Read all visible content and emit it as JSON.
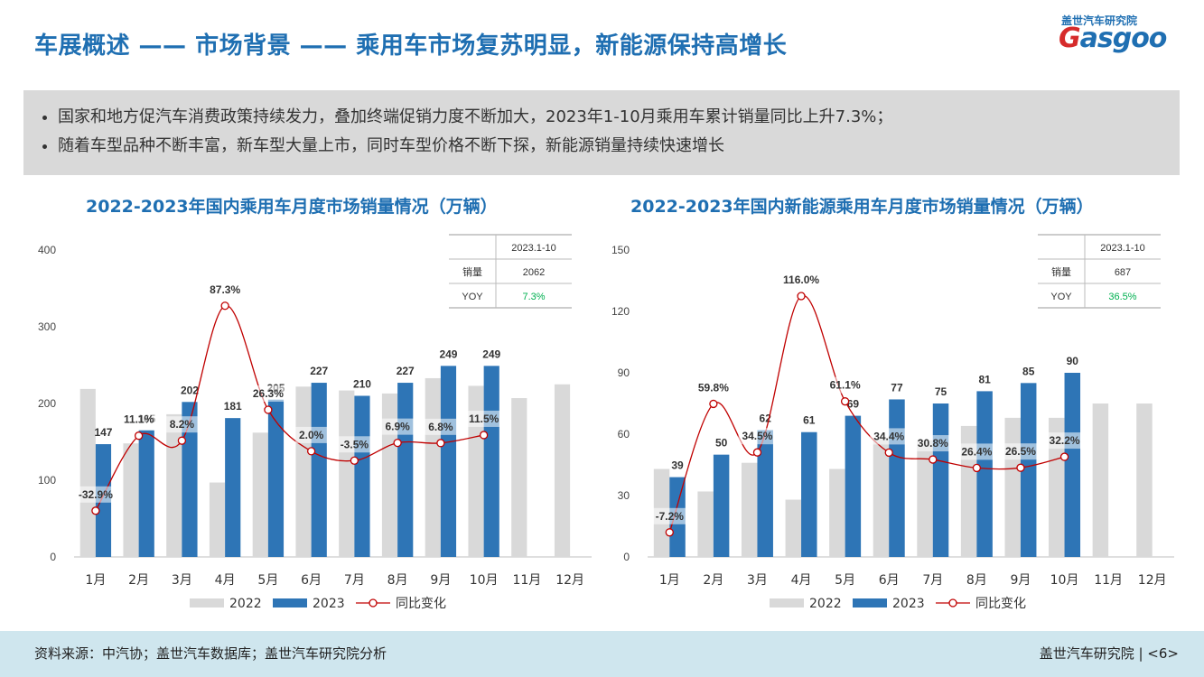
{
  "header": {
    "title": "车展概述 —— 市场背景 —— 乘用车市场复苏明显，新能源保持高增长",
    "logo_cn": "盖世汽车研究院",
    "logo_en_g": "G",
    "logo_en_rest": "asgoo"
  },
  "bullets": [
    "国家和地方促汽车消费政策持续发力，叠加终端促销力度不断加大，2023年1-10月乘用车累计销量同比上升7.3%；",
    "随着车型品种不断丰富，新车型大量上市，同时车型价格不断下探，新能源销量持续快速增长"
  ],
  "colors": {
    "s2022": "#d9d9d9",
    "s2023": "#2e75b6",
    "yoy": "#c00000",
    "accent": "#1f6fb2",
    "green": "#00b050"
  },
  "chart_data": [
    {
      "type": "bar",
      "title": "2022-2023年国内乘用车月度市场销量情况（万辆）",
      "categories": [
        "1月",
        "2月",
        "3月",
        "4月",
        "5月",
        "6月",
        "7月",
        "8月",
        "9月",
        "10月",
        "11月",
        "12月"
      ],
      "ylim": [
        0,
        400
      ],
      "yticks": [
        "0",
        "100",
        "200",
        "300",
        "400"
      ],
      "y2lim": [
        -60,
        120
      ],
      "series": [
        {
          "name": "2022",
          "values": [
            219,
            148,
            186,
            97,
            162,
            222,
            217,
            213,
            233,
            223,
            207,
            225
          ]
        },
        {
          "name": "2023",
          "values": [
            147,
            165,
            202,
            181,
            205,
            227,
            210,
            227,
            249,
            249,
            null,
            null
          ]
        },
        {
          "name": "同比变化",
          "values": [
            -32.9,
            11.1,
            8.2,
            87.3,
            26.3,
            2.0,
            -3.5,
            6.9,
            6.8,
            11.5,
            null,
            null
          ]
        }
      ],
      "bar_labels": [
        "147",
        "165",
        "202",
        "181",
        "205",
        "227",
        "210",
        "227",
        "249",
        "249",
        "",
        ""
      ],
      "yoy_labels": [
        "-32.9%",
        "11.1%",
        "8.2%",
        "87.3%",
        "26.3%",
        "2.0%",
        "-3.5%",
        "6.9%",
        "6.8%",
        "11.5%",
        "",
        ""
      ],
      "legend": [
        "2022",
        "2023",
        "同比变化"
      ],
      "table": {
        "header": "2023.1-10",
        "row1_label": "销量",
        "row1_value": "2062",
        "row2_label": "YOY",
        "row2_value": "7.3%"
      }
    },
    {
      "type": "bar",
      "title": "2022-2023年国内新能源乘用车月度市场销量情况（万辆）",
      "categories": [
        "1月",
        "2月",
        "3月",
        "4月",
        "5月",
        "6月",
        "7月",
        "8月",
        "9月",
        "10月",
        "11月",
        "12月"
      ],
      "ylim": [
        0,
        150
      ],
      "yticks": [
        "0",
        "30",
        "60",
        "90",
        "120",
        "150"
      ],
      "y2lim": [
        -20,
        140
      ],
      "series": [
        {
          "name": "2022",
          "values": [
            43,
            32,
            46,
            28,
            43,
            58,
            57,
            64,
            68,
            68,
            75,
            75
          ]
        },
        {
          "name": "2023",
          "values": [
            39,
            50,
            62,
            61,
            69,
            77,
            75,
            81,
            85,
            90,
            null,
            null
          ]
        },
        {
          "name": "同比变化",
          "values": [
            -7.2,
            59.8,
            34.5,
            116.0,
            61.1,
            34.4,
            30.8,
            26.4,
            26.5,
            32.2,
            null,
            null
          ]
        }
      ],
      "bar_labels": [
        "39",
        "50",
        "62",
        "61",
        "69",
        "77",
        "75",
        "81",
        "85",
        "90",
        "",
        ""
      ],
      "yoy_labels": [
        "-7.2%",
        "59.8%",
        "34.5%",
        "116.0%",
        "61.1%",
        "34.4%",
        "30.8%",
        "26.4%",
        "26.5%",
        "32.2%",
        "",
        ""
      ],
      "legend": [
        "2022",
        "2023",
        "同比变化"
      ],
      "table": {
        "header": "2023.1-10",
        "row1_label": "销量",
        "row1_value": "687",
        "row2_label": "YOY",
        "row2_value": "36.5%"
      }
    }
  ],
  "footer": {
    "source": "资料来源：中汽协；盖世汽车数据库；盖世汽车研究院分析",
    "brand": "盖世汽车研究院 | <6>"
  }
}
